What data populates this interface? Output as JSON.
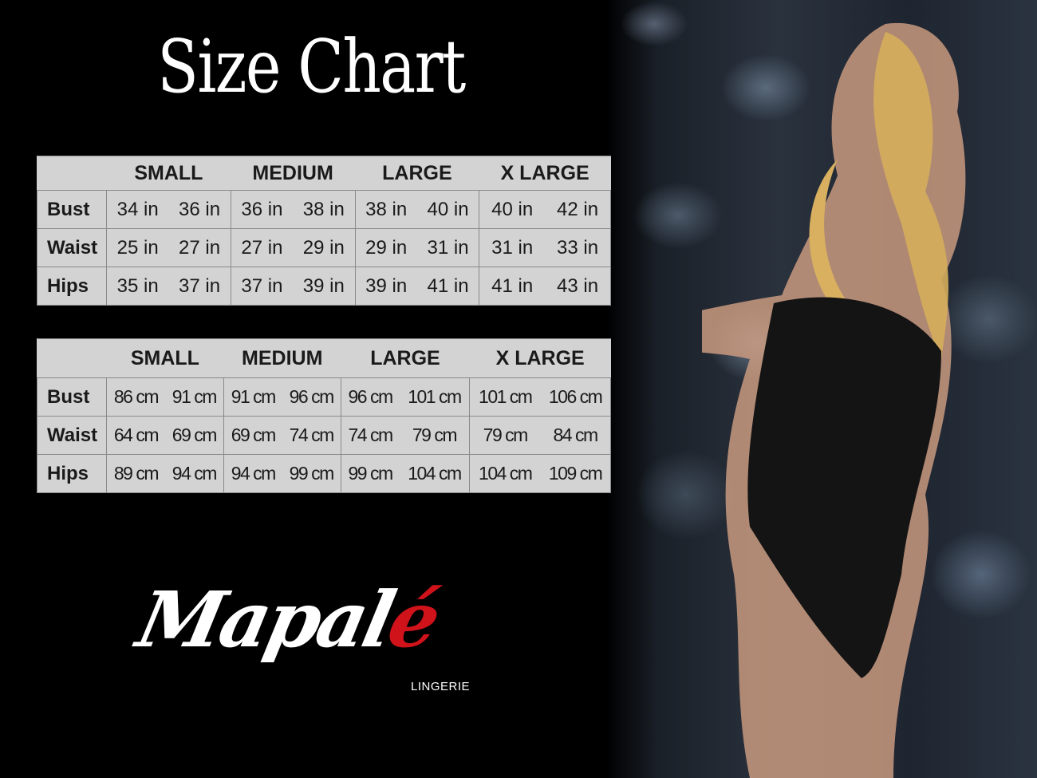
{
  "title": "Size Chart",
  "sizes": [
    "SMALL",
    "MEDIUM",
    "LARGE",
    "X LARGE"
  ],
  "tables": [
    {
      "unit": "in",
      "rows": [
        {
          "label": "Bust",
          "values": [
            "34 in",
            "36 in",
            "36 in",
            "38 in",
            "38 in",
            "40 in",
            "40 in",
            "42 in"
          ]
        },
        {
          "label": "Waist",
          "values": [
            "25 in",
            "27 in",
            "27 in",
            "29 in",
            "29 in",
            "31 in",
            "31 in",
            "33 in"
          ]
        },
        {
          "label": "Hips",
          "values": [
            "35 in",
            "37 in",
            "37 in",
            "39 in",
            "39 in",
            "41 in",
            "41 in",
            "43 in"
          ]
        }
      ]
    },
    {
      "unit": "cm",
      "rows": [
        {
          "label": "Bust",
          "values": [
            "86 cm",
            "91 cm",
            "91 cm",
            "96 cm",
            "96 cm",
            "101 cm",
            "101 cm",
            "106 cm"
          ]
        },
        {
          "label": "Waist",
          "values": [
            "64 cm",
            "69 cm",
            "69 cm",
            "74 cm",
            "74 cm",
            "79  cm",
            "79 cm",
            "84 cm"
          ]
        },
        {
          "label": "Hips",
          "values": [
            "89 cm",
            "94 cm",
            "94 cm",
            "99 cm",
            "99 cm",
            "104 cm",
            "104 cm",
            "109 cm"
          ]
        }
      ]
    }
  ],
  "logo": {
    "word_main": "Mapal",
    "word_accent": "é",
    "subtitle": "LINGERIE",
    "accent_color": "#d0121b"
  }
}
